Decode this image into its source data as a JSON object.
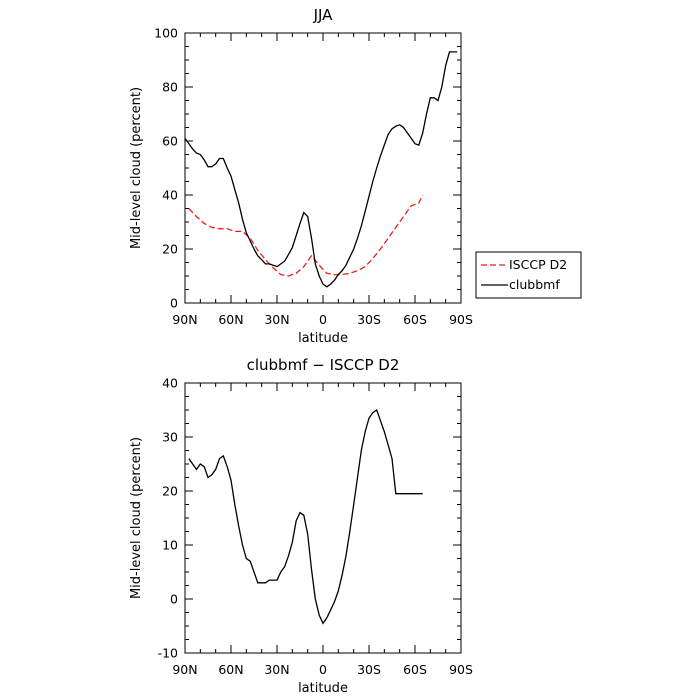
{
  "chart_data": [
    {
      "type": "line",
      "title": "JJA",
      "xlabel": "latitude",
      "ylabel": "Mid-level cloud (percent)",
      "x_tick_labels": [
        "90N",
        "60N",
        "30N",
        "0",
        "30S",
        "60S",
        "90S"
      ],
      "x_ticks": [
        -90,
        -60,
        -30,
        0,
        30,
        60,
        90
      ],
      "xlim": [
        -90,
        90
      ],
      "ylim": [
        0,
        100
      ],
      "y_ticks": [
        0,
        20,
        40,
        60,
        80,
        100
      ],
      "legend": {
        "placement": "right, outside the plot"
      },
      "series": [
        {
          "name": "ISCCP D2",
          "color": "#e8201e",
          "dash": true,
          "x": [
            -87.5,
            -82.5,
            -77.5,
            -72.5,
            -67.5,
            -62.5,
            -57.5,
            -52.5,
            -47.5,
            -42.5,
            -37.5,
            -32.5,
            -27.5,
            -22.5,
            -17.5,
            -12.5,
            -7.5,
            -2.5,
            2.5,
            7.5,
            12.5,
            17.5,
            22.5,
            27.5,
            32.5,
            37.5,
            42.5,
            47.5,
            52.5,
            57.5,
            62.5,
            65
          ],
          "values": [
            35,
            32,
            29.5,
            28,
            27.5,
            27.5,
            26.5,
            26.5,
            24,
            19.5,
            16,
            13,
            10.5,
            10,
            11,
            13.5,
            17.5,
            14,
            11,
            10.5,
            10.5,
            11,
            12,
            13.5,
            16.5,
            20,
            24,
            28,
            32,
            36,
            37,
            40
          ]
        },
        {
          "name": "clubbmf",
          "color": "#000000",
          "dash": false,
          "x": [
            -90,
            -85,
            -82.5,
            -80,
            -77.5,
            -75,
            -72.5,
            -70,
            -67.5,
            -65,
            -62.5,
            -60,
            -57.5,
            -55,
            -52.5,
            -50,
            -47.5,
            -45,
            -42.5,
            -40,
            -37.5,
            -35,
            -32.5,
            -30,
            -27.5,
            -25,
            -22.5,
            -20,
            -17.5,
            -15,
            -12.5,
            -10,
            -7.5,
            -5,
            -2.5,
            0,
            2.5,
            5,
            7.5,
            10,
            12.5,
            15,
            17.5,
            20,
            22.5,
            25,
            27.5,
            30,
            32.5,
            35,
            37.5,
            40,
            42.5,
            45,
            47.5,
            50,
            52.5,
            55,
            57.5,
            60,
            62.5,
            65,
            67.5,
            70,
            72.5,
            75,
            77.5,
            80,
            82.5,
            85,
            87.5
          ],
          "values": [
            61,
            57,
            55.5,
            55,
            53,
            50.5,
            50.5,
            51.5,
            53.5,
            53.5,
            50,
            47,
            42,
            37,
            31,
            26,
            23,
            20,
            17.5,
            16,
            14.5,
            14.5,
            14,
            13.5,
            14.5,
            15.5,
            18,
            20.5,
            25,
            29.5,
            33.5,
            32,
            24,
            14.5,
            10,
            7,
            6,
            7,
            8.5,
            10.5,
            12,
            14,
            17,
            20,
            24,
            28.5,
            34,
            39.5,
            45,
            50,
            54.5,
            58.5,
            62.5,
            64.5,
            65.5,
            66,
            65,
            63,
            61,
            59,
            58.5,
            63,
            70,
            76,
            76,
            75,
            80,
            88,
            93,
            93,
            93
          ]
        }
      ]
    },
    {
      "type": "line",
      "title": "clubbmf − ISCCP D2",
      "xlabel": "latitude",
      "ylabel": "Mid-level cloud (percent)",
      "x_tick_labels": [
        "90N",
        "60N",
        "30N",
        "0",
        "30S",
        "60S",
        "90S"
      ],
      "x_ticks": [
        -90,
        -60,
        -30,
        0,
        30,
        60,
        90
      ],
      "xlim": [
        -90,
        90
      ],
      "ylim": [
        -10,
        40
      ],
      "y_ticks": [
        -10,
        0,
        10,
        20,
        30,
        40
      ],
      "series": [
        {
          "color": "#000000",
          "dash": false,
          "x": [
            -87.5,
            -82.5,
            -80,
            -77.5,
            -75,
            -72.5,
            -70,
            -67.5,
            -65,
            -62.5,
            -60,
            -57.5,
            -55,
            -52.5,
            -50,
            -47.5,
            -45,
            -42.5,
            -40,
            -37.5,
            -35,
            -32.5,
            -30,
            -27.5,
            -25,
            -22.5,
            -20,
            -17.5,
            -15,
            -12.5,
            -10,
            -7.5,
            -5,
            -2.5,
            0,
            2.5,
            5,
            7.5,
            10,
            12.5,
            15,
            17.5,
            20,
            22.5,
            25,
            27.5,
            30,
            32.5,
            35,
            37.5,
            40,
            42.5,
            45,
            47.5,
            50,
            52.5,
            55,
            57.5,
            60,
            62.5,
            65
          ],
          "values": [
            26,
            24,
            25,
            24.5,
            22.5,
            23,
            24,
            26,
            26.5,
            24.5,
            22,
            17.5,
            13.5,
            10,
            7.5,
            7,
            5,
            3,
            3,
            3,
            3.5,
            3.5,
            3.5,
            5,
            6,
            8,
            10.5,
            14.5,
            16,
            15.5,
            12,
            5.5,
            0,
            -3,
            -4.5,
            -3.5,
            -2,
            -0.5,
            1.5,
            4.5,
            8,
            12.5,
            17.5,
            22.5,
            27.5,
            31,
            33.5,
            34.5,
            35,
            33,
            31,
            28.5,
            26,
            19.5,
            19.5,
            19.5,
            19.5,
            19.5,
            19.5,
            19.5,
            19.5
          ]
        }
      ]
    }
  ]
}
